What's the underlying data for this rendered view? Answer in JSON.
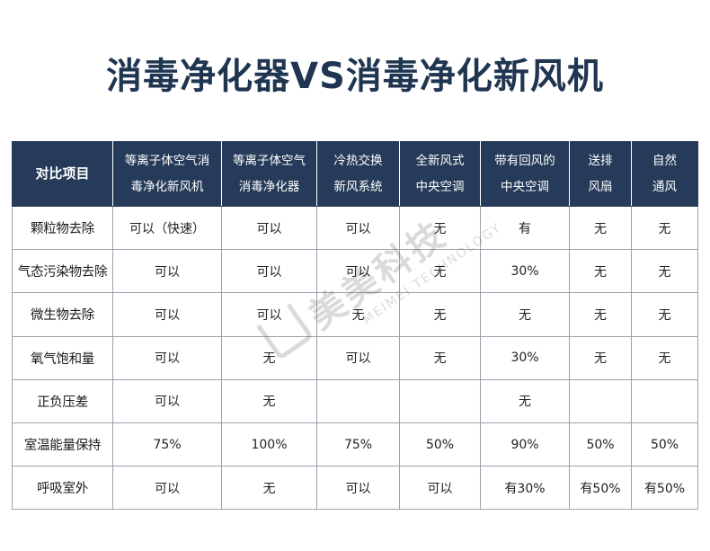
{
  "title": "消毒净化器VS消毒净化新风机",
  "table": {
    "headers": [
      {
        "lines": [
          "对比项目"
        ]
      },
      {
        "lines": [
          "等离子体空气消",
          "毒净化新风机"
        ]
      },
      {
        "lines": [
          "等离子体空气",
          "消毒净化器"
        ]
      },
      {
        "lines": [
          "冷热交换",
          "新风系统"
        ]
      },
      {
        "lines": [
          "全新风式",
          "中央空调"
        ]
      },
      {
        "lines": [
          "带有回风的",
          "中央空调"
        ]
      },
      {
        "lines": [
          "送排",
          "风扇"
        ]
      },
      {
        "lines": [
          "自然",
          "通风"
        ]
      }
    ],
    "rows": [
      {
        "label": "颗粒物去除",
        "cells": [
          "可以（快速）",
          "可以",
          "可以",
          "无",
          "有",
          "无",
          "无"
        ]
      },
      {
        "label": "气态污染物去除",
        "cells": [
          "可以",
          "可以",
          "可以",
          "无",
          "30%",
          "无",
          "无"
        ]
      },
      {
        "label": "微生物去除",
        "cells": [
          "可以",
          "可以",
          "无",
          "无",
          "无",
          "无",
          "无"
        ]
      },
      {
        "label": "氧气饱和量",
        "cells": [
          "可以",
          "无",
          "可以",
          "无",
          "30%",
          "无",
          "无"
        ]
      },
      {
        "label": "正负压差",
        "cells": [
          "可以",
          "无",
          "",
          "",
          "无",
          "",
          ""
        ]
      },
      {
        "label": "室温能量保持",
        "cells": [
          "75%",
          "100%",
          "75%",
          "50%",
          "90%",
          "50%",
          "50%"
        ]
      },
      {
        "label": "呼吸室外",
        "cells": [
          "可以",
          "无",
          "可以",
          "可以",
          "有30%",
          "有50%",
          "有50%"
        ]
      }
    ]
  },
  "watermark": {
    "cn": "美美科技",
    "en": "MEIMEI TECHNOLOGY",
    "logo_icon": "meimei-logo-icon"
  },
  "colors": {
    "title": "#1f3550",
    "header_bg": "#253b59",
    "positive_text": "#d4102a"
  }
}
